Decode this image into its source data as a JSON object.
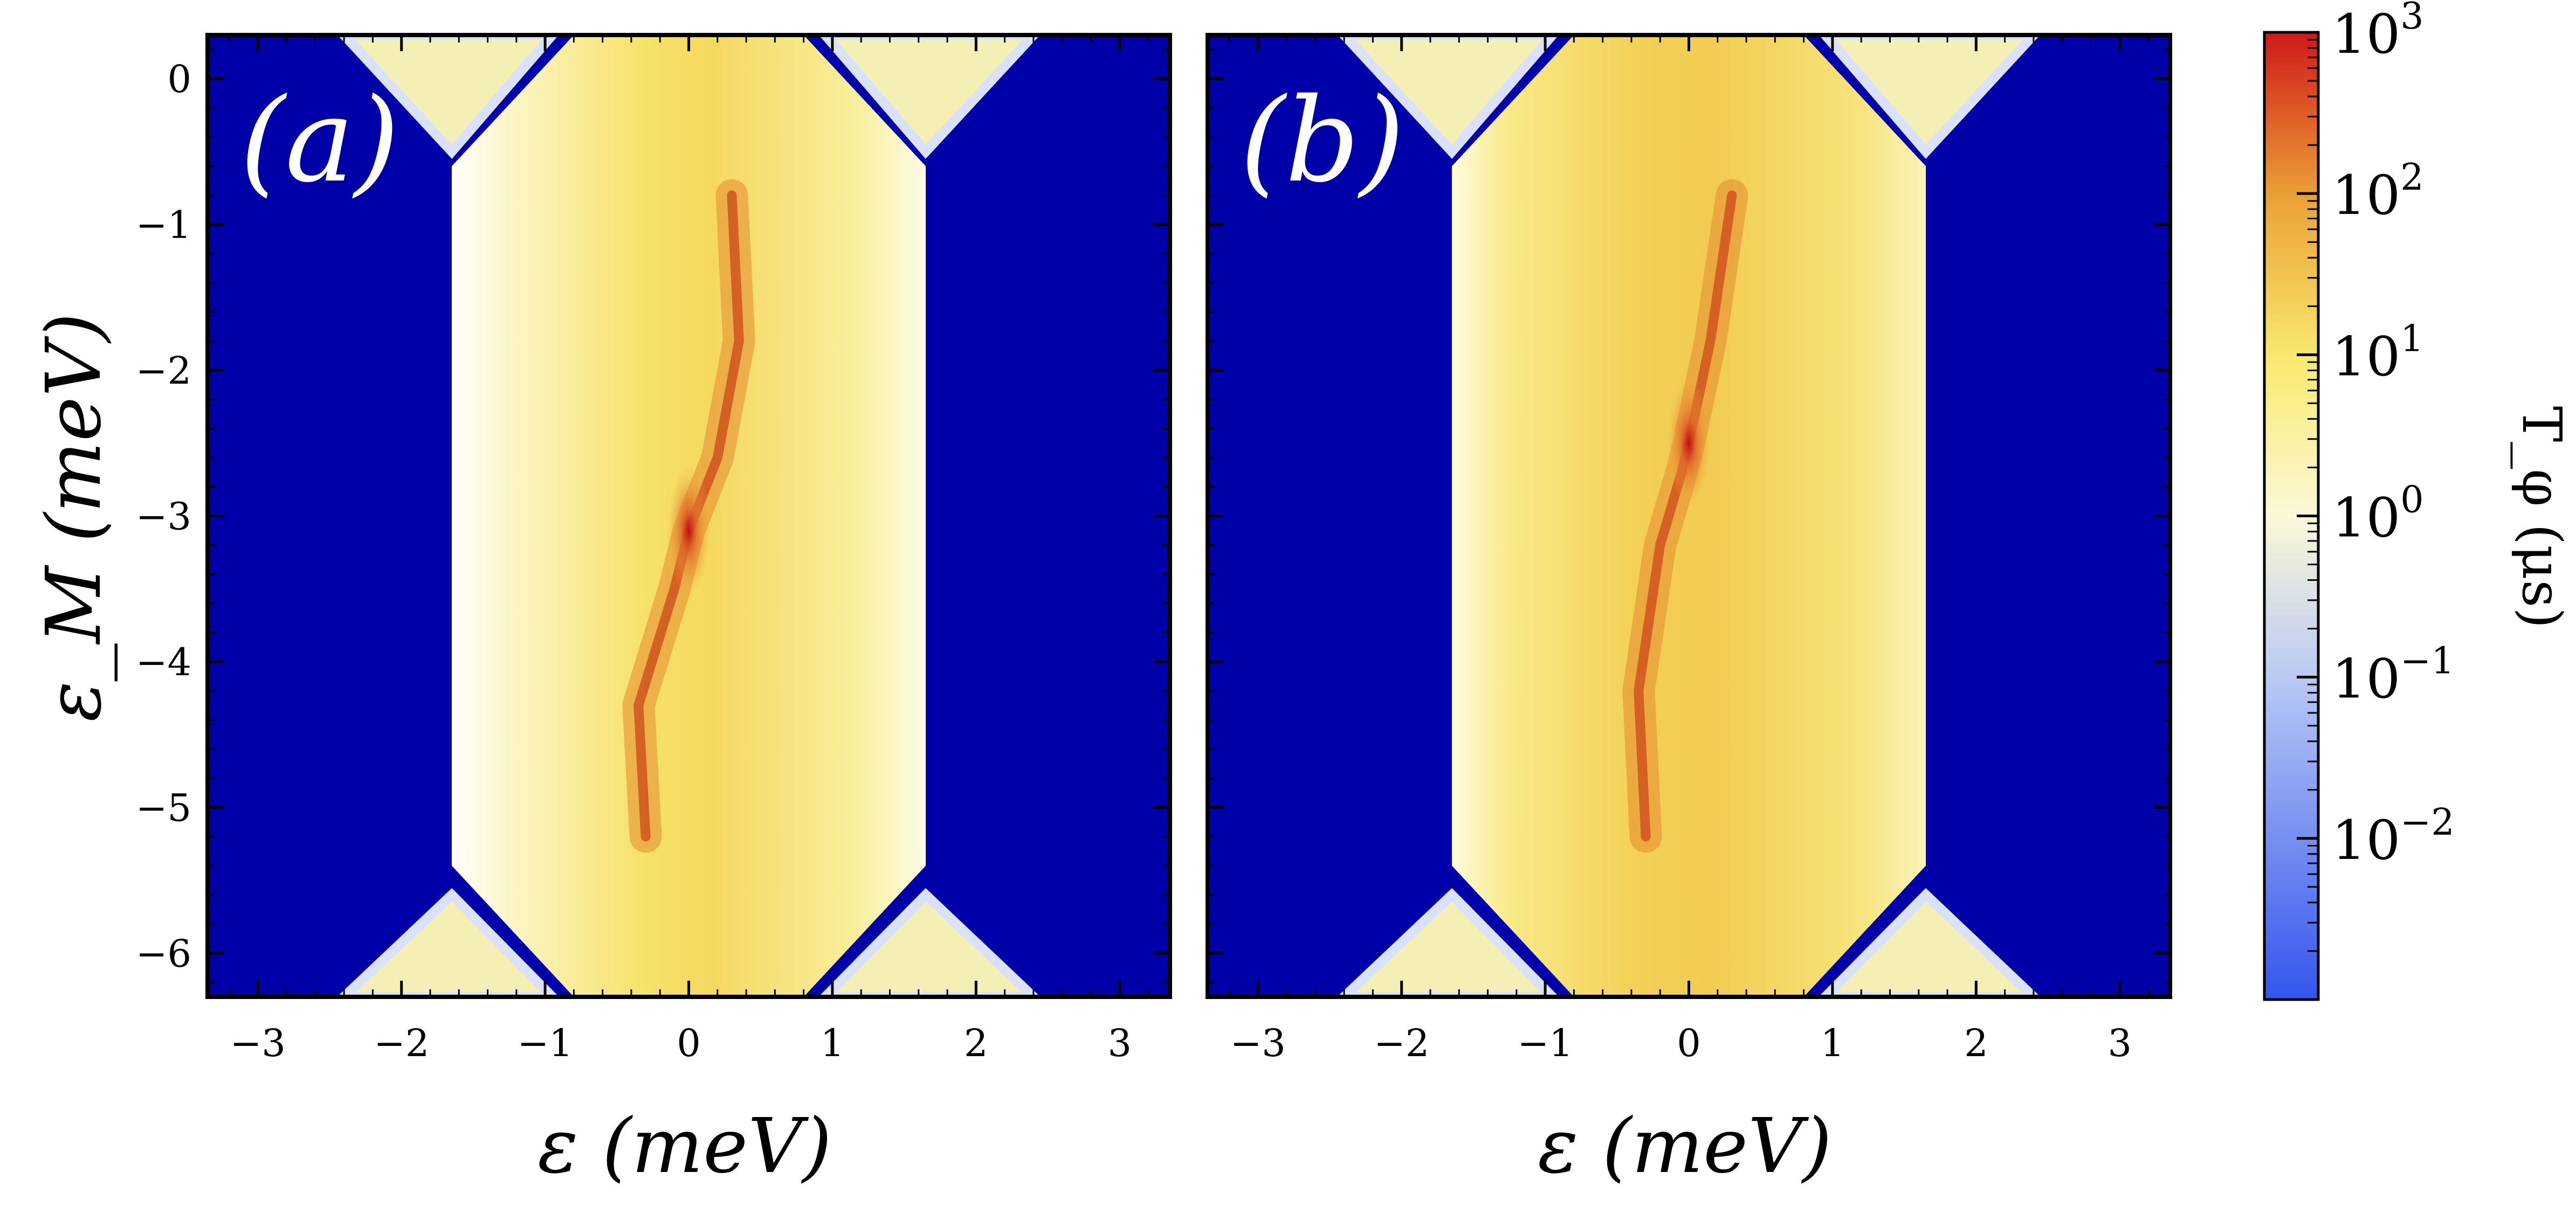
{
  "chart_data": {
    "type": "heatmap",
    "panels": [
      {
        "label": "(a)",
        "xlabel": "ε (meV)",
        "ylabel": "ε_M (meV)",
        "xlim": [
          -3.35,
          3.35
        ],
        "ylim": [
          -6.3,
          0.3
        ],
        "xticks": [
          -3,
          -2,
          -1,
          0,
          1,
          2,
          3
        ],
        "yticks": [
          0,
          -1,
          -2,
          -3,
          -4,
          -5,
          -6
        ],
        "peak": {
          "x": 0.0,
          "y": -3.1
        },
        "ridge": [
          [
            -0.3,
            -5.2
          ],
          [
            -0.35,
            -4.3
          ],
          [
            -0.1,
            -3.5
          ],
          [
            0.0,
            -3.1
          ],
          [
            0.2,
            -2.6
          ],
          [
            0.35,
            -1.8
          ],
          [
            0.3,
            -0.8
          ]
        ]
      },
      {
        "label": "(b)",
        "xlabel": "ε (meV)",
        "ylabel": "",
        "xlim": [
          -3.35,
          3.35
        ],
        "ylim": [
          -6.3,
          0.3
        ],
        "xticks": [
          -3,
          -2,
          -1,
          0,
          1,
          2,
          3
        ],
        "yticks": [],
        "peak": {
          "x": 0.0,
          "y": -2.5
        },
        "ridge": [
          [
            -0.3,
            -5.2
          ],
          [
            -0.35,
            -4.2
          ],
          [
            -0.2,
            -3.2
          ],
          [
            -0.05,
            -2.7
          ],
          [
            0.0,
            -2.5
          ],
          [
            0.15,
            -1.8
          ],
          [
            0.3,
            -0.8
          ]
        ]
      }
    ],
    "central_band": {
      "x_min": -1.65,
      "x_max": 1.65
    },
    "colorbar": {
      "label": "T_φ (μs)",
      "scale": "log",
      "range": [
        0.001,
        1000
      ],
      "tick_labels": [
        {
          "mantissa": "10",
          "exponent": "3",
          "value": 1000
        },
        {
          "mantissa": "10",
          "exponent": "2",
          "value": 100
        },
        {
          "mantissa": "10",
          "exponent": "1",
          "value": 10
        },
        {
          "mantissa": "10",
          "exponent": "0",
          "value": 1
        },
        {
          "mantissa": "10",
          "exponent": "−1",
          "value": 0.1
        },
        {
          "mantissa": "10",
          "exponent": "−2",
          "value": 0.01
        }
      ],
      "colors": {
        "low": "#3355ee",
        "mid_low": "#d6e0f8",
        "one": "#fbf8d8",
        "mid_high": "#f8e870",
        "high": "#e8922a",
        "top": "#d01818"
      }
    },
    "background_color": "#0000a8"
  }
}
